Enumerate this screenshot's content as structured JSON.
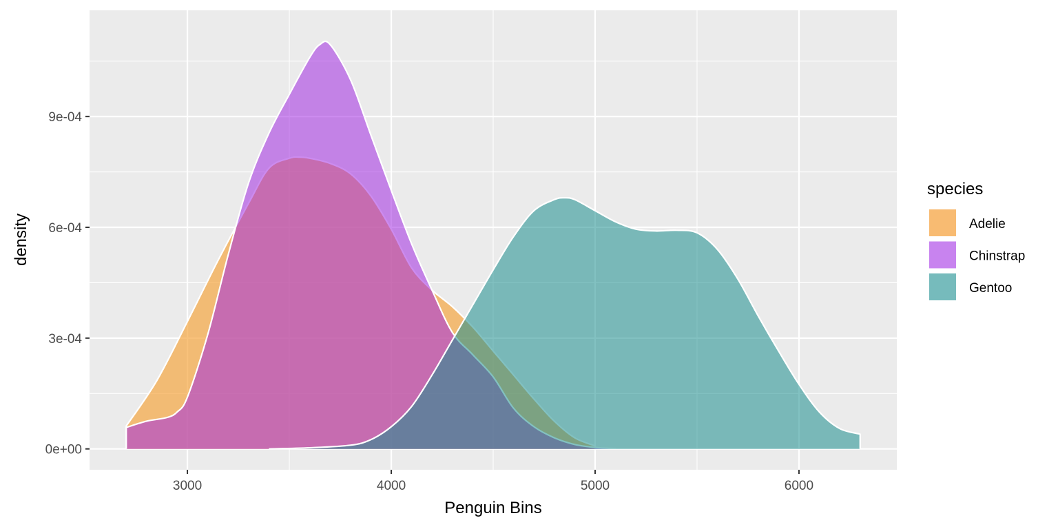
{
  "chart_data": {
    "type": "area",
    "subtype": "density",
    "title": "",
    "xlabel": "Penguin Bins",
    "ylabel": "density",
    "xlim": [
      2520,
      6480
    ],
    "ylim": [
      -5.65e-05,
      0.0011875
    ],
    "x_ticks": [
      {
        "value": 3000,
        "label": "3000"
      },
      {
        "value": 4000,
        "label": "4000"
      },
      {
        "value": 5000,
        "label": "5000"
      },
      {
        "value": 6000,
        "label": "6000"
      }
    ],
    "y_ticks": [
      {
        "value": 0,
        "label": "0e+00"
      },
      {
        "value": 0.0003,
        "label": "3e-04"
      },
      {
        "value": 0.0006,
        "label": "6e-04"
      },
      {
        "value": 0.0009,
        "label": "9e-04"
      }
    ],
    "grid": true,
    "background": "#EBEBEB",
    "legend": {
      "title": "species",
      "position": "right",
      "entries": [
        {
          "label": "Adelie",
          "color": "#F8BB72"
        },
        {
          "label": "Chinstrap",
          "color": "#C883EF"
        },
        {
          "label": "Gentoo",
          "color": "#76BBBC"
        }
      ]
    },
    "series": [
      {
        "name": "Adelie",
        "fill": "#F5A742",
        "alpha": 0.7,
        "x": [
          2700,
          2850,
          3000,
          3150,
          3300,
          3400,
          3500,
          3550,
          3600,
          3700,
          3800,
          3900,
          4000,
          4100,
          4200,
          4300,
          4400,
          4500,
          4600,
          4700,
          4800,
          4900,
          5000
        ],
        "y": [
          6.2e-05,
          0.000185,
          0.000345,
          0.00051,
          0.000665,
          0.00076,
          0.000787,
          0.00079,
          0.000787,
          0.000773,
          0.000745,
          0.000685,
          0.000595,
          0.00049,
          0.00043,
          0.000385,
          0.00033,
          0.000265,
          0.0002,
          0.000135,
          7.5e-05,
          3e-05,
          8e-06
        ]
      },
      {
        "name": "Chinstrap",
        "fill": "#A32CE2",
        "alpha": 0.55,
        "x": [
          2700,
          2800,
          2900,
          2950,
          3000,
          3100,
          3200,
          3300,
          3400,
          3500,
          3600,
          3650,
          3700,
          3800,
          3900,
          4000,
          4100,
          4200,
          4300,
          4400,
          4500,
          4600,
          4700,
          4800,
          4900,
          5000,
          5100
        ],
        "y": [
          5.8e-05,
          7.5e-05,
          8.5e-05,
          0.0001,
          0.00014,
          0.00031,
          0.000525,
          0.00072,
          0.000855,
          0.00096,
          0.00106,
          0.001095,
          0.001095,
          0.001,
          0.00085,
          0.0007,
          0.000555,
          0.00043,
          0.000315,
          0.000255,
          0.000195,
          0.00011,
          6e-05,
          3e-05,
          1.2e-05,
          4e-06,
          1e-06
        ]
      },
      {
        "name": "Gentoo",
        "fill": "#1B8E8E",
        "alpha": 0.55,
        "x": [
          3400,
          3600,
          3800,
          3900,
          4000,
          4100,
          4200,
          4300,
          4400,
          4500,
          4600,
          4700,
          4800,
          4850,
          4900,
          5000,
          5100,
          5200,
          5300,
          5400,
          5500,
          5600,
          5700,
          5800,
          5900,
          6000,
          6100,
          6200,
          6300
        ],
        "y": [
          0.0,
          3e-06,
          1e-05,
          2.5e-05,
          6e-05,
          0.000115,
          0.0002,
          0.000295,
          0.00039,
          0.000485,
          0.000575,
          0.000645,
          0.000675,
          0.00068,
          0.000675,
          0.000645,
          0.000615,
          0.000595,
          0.00059,
          0.000592,
          0.000585,
          0.00054,
          0.00046,
          0.00036,
          0.000265,
          0.000175,
          0.0001,
          5.5e-05,
          4e-05
        ]
      }
    ]
  }
}
